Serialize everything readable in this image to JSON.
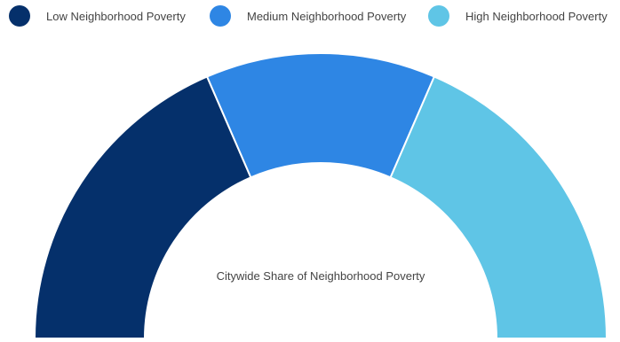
{
  "chart_data": {
    "type": "pie",
    "subtype": "semi-donut",
    "title": "",
    "center_label": "Citywide Share of Neighborhood Poverty",
    "legend_position": "top",
    "categories": [
      "Low Neighborhood Poverty",
      "Medium Neighborhood Poverty",
      "High Neighborhood Poverty"
    ],
    "values": [
      37,
      26,
      37
    ],
    "colors": [
      "#05306b",
      "#2e86e4",
      "#5fc5e6"
    ]
  }
}
